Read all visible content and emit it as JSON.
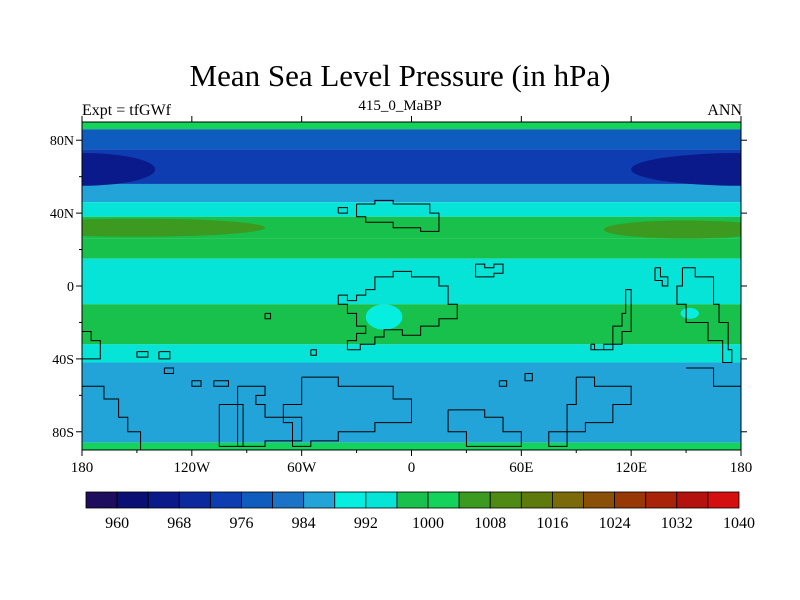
{
  "header": {
    "title": "Mean Sea Level Pressure (in hPa)",
    "left_label": "Expt = tfGWf",
    "center_label": "415_0_MaBP",
    "right_label": "ANN"
  },
  "chart_data": {
    "type": "heatmap",
    "title": "Mean Sea Level Pressure (in hPa)",
    "variable": "Mean Sea Level Pressure",
    "units": "hPa",
    "x_range": [
      -180,
      180
    ],
    "y_range": [
      -90,
      90
    ],
    "x_ticks": [
      {
        "value": -180,
        "label": "180"
      },
      {
        "value": -120,
        "label": "120W"
      },
      {
        "value": -60,
        "label": "60W"
      },
      {
        "value": 0,
        "label": "0"
      },
      {
        "value": 60,
        "label": "60E"
      },
      {
        "value": 120,
        "label": "120E"
      },
      {
        "value": 180,
        "label": "180"
      }
    ],
    "y_ticks": [
      {
        "value": 80,
        "label": "80N"
      },
      {
        "value": 40,
        "label": "40N"
      },
      {
        "value": 0,
        "label": "0"
      },
      {
        "value": -40,
        "label": "40S"
      },
      {
        "value": -80,
        "label": "80S"
      }
    ],
    "colorbar": {
      "colors": [
        "#1e0d5e",
        "#0a0f73",
        "#0b1a8a",
        "#0c2a9e",
        "#0d3db0",
        "#0f5cbf",
        "#1b73c8",
        "#22a4d9",
        "#05eedf",
        "#06e4d7",
        "#18c14c",
        "#13d35b",
        "#3b9a1f",
        "#4f8b14",
        "#5e7a0d",
        "#7a6a0a",
        "#8a5008",
        "#983806",
        "#a82308",
        "#b4120f",
        "#d40f10"
      ],
      "boundaries": [
        956,
        960,
        964,
        968,
        972,
        976,
        980,
        984,
        988,
        992,
        996,
        1000,
        1004,
        1008,
        1012,
        1016,
        1020,
        1024,
        1028,
        1032,
        1036,
        1040
      ],
      "labels": [
        {
          "value": 960,
          "label": "960"
        },
        {
          "value": 968,
          "label": "968"
        },
        {
          "value": 976,
          "label": "976"
        },
        {
          "value": 984,
          "label": "984"
        },
        {
          "value": 992,
          "label": "992"
        },
        {
          "value": 1000,
          "label": "1000"
        },
        {
          "value": 1008,
          "label": "1008"
        },
        {
          "value": 1016,
          "label": "1016"
        },
        {
          "value": 1024,
          "label": "1024"
        },
        {
          "value": 1032,
          "label": "1032"
        },
        {
          "value": 1040,
          "label": "1040"
        }
      ]
    },
    "zonal_bands": [
      {
        "lat_from": 90,
        "lat_to": 86,
        "value": 1002
      },
      {
        "lat_from": 86,
        "lat_to": 75,
        "value": 978
      },
      {
        "lat_from": 75,
        "lat_to": 56,
        "value": 972
      },
      {
        "lat_from": 56,
        "lat_to": 46,
        "value": 984
      },
      {
        "lat_from": 46,
        "lat_to": 38,
        "value": 992
      },
      {
        "lat_from": 38,
        "lat_to": 26,
        "value": 999
      },
      {
        "lat_from": 26,
        "lat_to": 15,
        "value": 998
      },
      {
        "lat_from": 15,
        "lat_to": -10,
        "value": 994
      },
      {
        "lat_from": -10,
        "lat_to": -32,
        "value": 999
      },
      {
        "lat_from": -32,
        "lat_to": -42,
        "value": 993
      },
      {
        "lat_from": -42,
        "lat_to": -86,
        "value": 987
      },
      {
        "lat_from": -86,
        "lat_to": -90,
        "value": 1002
      }
    ],
    "features": [
      {
        "name": "north-pacific-low-west",
        "lon": -180,
        "lat": 64,
        "lon_half": 40,
        "lat_half": 9,
        "value": 966
      },
      {
        "name": "north-pacific-low-east",
        "lon": 180,
        "lat": 64,
        "lon_half": 60,
        "lat_half": 9,
        "value": 966
      },
      {
        "name": "subtropical-high-west",
        "lon": -150,
        "lat": 32,
        "lon_half": 70,
        "lat_half": 5,
        "value": 1004
      },
      {
        "name": "subtropical-high-east",
        "lon": 150,
        "lat": 31,
        "lon_half": 45,
        "lat_half": 5,
        "value": 1004
      },
      {
        "name": "thermal-low-central",
        "lon": -15,
        "lat": -17,
        "lon_half": 10,
        "lat_half": 7,
        "value": 988
      },
      {
        "name": "thermal-low-east",
        "lon": 152,
        "lat": -15,
        "lon_half": 5,
        "lat_half": 3,
        "value": 988
      }
    ],
    "coastlines": [
      [
        [
          -30,
          45
        ],
        [
          -20,
          45
        ],
        [
          -20,
          47
        ],
        [
          -10,
          47
        ],
        [
          -10,
          45
        ],
        [
          10,
          45
        ],
        [
          10,
          40
        ],
        [
          15,
          40
        ],
        [
          15,
          30
        ],
        [
          5,
          30
        ],
        [
          5,
          32
        ],
        [
          -10,
          32
        ],
        [
          -10,
          35
        ],
        [
          -25,
          35
        ],
        [
          -25,
          38
        ],
        [
          -30,
          38
        ],
        [
          -30,
          45
        ]
      ],
      [
        [
          -40,
          -5
        ],
        [
          -35,
          -5
        ],
        [
          -35,
          -8
        ],
        [
          -30,
          -8
        ],
        [
          -30,
          -5
        ],
        [
          -25,
          -5
        ],
        [
          -25,
          -2
        ],
        [
          -20,
          -2
        ],
        [
          -20,
          5
        ],
        [
          -10,
          5
        ],
        [
          -10,
          8
        ],
        [
          0,
          8
        ],
        [
          0,
          5
        ],
        [
          15,
          5
        ],
        [
          15,
          0
        ],
        [
          20,
          0
        ],
        [
          20,
          -10
        ],
        [
          25,
          -10
        ],
        [
          25,
          -18
        ],
        [
          15,
          -18
        ],
        [
          15,
          -22
        ],
        [
          5,
          -22
        ],
        [
          5,
          -27
        ],
        [
          -5,
          -27
        ],
        [
          -5,
          -24
        ],
        [
          -15,
          -24
        ],
        [
          -15,
          -28
        ],
        [
          -20,
          -28
        ],
        [
          -20,
          -32
        ],
        [
          -28,
          -32
        ],
        [
          -28,
          -35
        ],
        [
          -35,
          -35
        ],
        [
          -35,
          -30
        ],
        [
          -30,
          -30
        ],
        [
          -30,
          -26
        ],
        [
          -25,
          -26
        ],
        [
          -25,
          -22
        ],
        [
          -30,
          -22
        ],
        [
          -30,
          -15
        ],
        [
          -35,
          -15
        ],
        [
          -35,
          -10
        ],
        [
          -40,
          -10
        ],
        [
          -40,
          -5
        ]
      ],
      [
        [
          35,
          12
        ],
        [
          40,
          12
        ],
        [
          40,
          10
        ],
        [
          45,
          10
        ],
        [
          45,
          12
        ],
        [
          50,
          12
        ],
        [
          50,
          7
        ],
        [
          45,
          7
        ],
        [
          45,
          5
        ],
        [
          35,
          5
        ],
        [
          35,
          12
        ]
      ],
      [
        [
          98,
          -32
        ],
        [
          100,
          -32
        ],
        [
          100,
          -35
        ],
        [
          110,
          -35
        ],
        [
          110,
          -22
        ],
        [
          115,
          -22
        ],
        [
          115,
          -15
        ],
        [
          117,
          -15
        ],
        [
          117,
          -2
        ],
        [
          120,
          -2
        ],
        [
          120,
          -25
        ],
        [
          115,
          -25
        ],
        [
          115,
          -32
        ],
        [
          105,
          -32
        ],
        [
          105,
          -35
        ],
        [
          98,
          -35
        ],
        [
          98,
          -32
        ]
      ],
      [
        [
          133,
          10
        ],
        [
          136,
          10
        ],
        [
          136,
          5
        ],
        [
          140,
          5
        ],
        [
          140,
          0
        ],
        [
          137,
          0
        ],
        [
          137,
          3
        ],
        [
          133,
          3
        ],
        [
          133,
          10
        ]
      ],
      [
        [
          148,
          10
        ],
        [
          155,
          10
        ],
        [
          155,
          5
        ],
        [
          165,
          5
        ],
        [
          165,
          -10
        ],
        [
          168,
          -10
        ],
        [
          168,
          -20
        ],
        [
          173,
          -20
        ],
        [
          173,
          -35
        ],
        [
          175,
          -35
        ],
        [
          175,
          -42
        ],
        [
          170,
          -42
        ],
        [
          170,
          -30
        ],
        [
          162,
          -30
        ],
        [
          162,
          -20
        ],
        [
          150,
          -20
        ],
        [
          150,
          -10
        ],
        [
          145,
          -10
        ],
        [
          145,
          0
        ],
        [
          148,
          0
        ],
        [
          148,
          10
        ]
      ],
      [
        [
          -180,
          -25
        ],
        [
          -175,
          -25
        ],
        [
          -175,
          -30
        ],
        [
          -170,
          -30
        ],
        [
          -170,
          -40
        ],
        [
          -180,
          -40
        ]
      ],
      [
        [
          -150,
          -36
        ],
        [
          -144,
          -36
        ],
        [
          -144,
          -39
        ],
        [
          -150,
          -39
        ],
        [
          -150,
          -36
        ]
      ],
      [
        [
          -138,
          -36
        ],
        [
          -132,
          -36
        ],
        [
          -132,
          -40
        ],
        [
          -138,
          -40
        ],
        [
          -138,
          -36
        ]
      ],
      [
        [
          -135,
          -45
        ],
        [
          -130,
          -45
        ],
        [
          -130,
          -48
        ],
        [
          -135,
          -48
        ],
        [
          -135,
          -45
        ]
      ],
      [
        [
          -120,
          -52
        ],
        [
          -115,
          -52
        ],
        [
          -115,
          -55
        ],
        [
          -120,
          -55
        ],
        [
          -120,
          -52
        ]
      ],
      [
        [
          -108,
          -52
        ],
        [
          -100,
          -52
        ],
        [
          -100,
          -55
        ],
        [
          -108,
          -55
        ],
        [
          -108,
          -52
        ]
      ],
      [
        [
          -180,
          -55
        ],
        [
          -168,
          -55
        ],
        [
          -168,
          -62
        ],
        [
          -160,
          -62
        ],
        [
          -160,
          -72
        ],
        [
          -155,
          -72
        ],
        [
          -155,
          -80
        ],
        [
          -148,
          -80
        ],
        [
          -148,
          -90
        ]
      ],
      [
        [
          -105,
          -65
        ],
        [
          -92,
          -65
        ],
        [
          -92,
          -88
        ],
        [
          -105,
          -88
        ],
        [
          -105,
          -65
        ]
      ],
      [
        [
          -95,
          -55
        ],
        [
          -80,
          -55
        ],
        [
          -80,
          -60
        ],
        [
          -85,
          -60
        ],
        [
          -85,
          -65
        ],
        [
          -80,
          -65
        ],
        [
          -80,
          -72
        ],
        [
          -60,
          -72
        ],
        [
          -60,
          -85
        ],
        [
          -80,
          -85
        ],
        [
          -80,
          -88
        ],
        [
          -95,
          -88
        ],
        [
          -95,
          -55
        ]
      ],
      [
        [
          -60,
          -50
        ],
        [
          -40,
          -50
        ],
        [
          -40,
          -55
        ],
        [
          -10,
          -55
        ],
        [
          -10,
          -62
        ],
        [
          0,
          -62
        ],
        [
          0,
          -75
        ],
        [
          -20,
          -75
        ],
        [
          -20,
          -80
        ],
        [
          -40,
          -80
        ],
        [
          -40,
          -85
        ],
        [
          -55,
          -85
        ],
        [
          -55,
          -88
        ],
        [
          -65,
          -88
        ],
        [
          -65,
          -75
        ],
        [
          -70,
          -75
        ],
        [
          -70,
          -65
        ],
        [
          -60,
          -65
        ],
        [
          -60,
          -50
        ]
      ],
      [
        [
          20,
          -68
        ],
        [
          40,
          -68
        ],
        [
          40,
          -72
        ],
        [
          50,
          -72
        ],
        [
          50,
          -80
        ],
        [
          60,
          -80
        ],
        [
          60,
          -88
        ],
        [
          30,
          -88
        ],
        [
          30,
          -80
        ],
        [
          20,
          -80
        ],
        [
          20,
          -68
        ]
      ],
      [
        [
          48,
          -52
        ],
        [
          52,
          -52
        ],
        [
          52,
          -55
        ],
        [
          48,
          -55
        ],
        [
          48,
          -52
        ]
      ],
      [
        [
          62,
          -48
        ],
        [
          66,
          -48
        ],
        [
          66,
          -52
        ],
        [
          62,
          -52
        ],
        [
          62,
          -48
        ]
      ],
      [
        [
          90,
          -50
        ],
        [
          100,
          -50
        ],
        [
          100,
          -55
        ],
        [
          120,
          -55
        ],
        [
          120,
          -65
        ],
        [
          110,
          -65
        ],
        [
          110,
          -75
        ],
        [
          95,
          -75
        ],
        [
          95,
          -80
        ],
        [
          75,
          -80
        ],
        [
          75,
          -88
        ],
        [
          85,
          -88
        ],
        [
          85,
          -65
        ],
        [
          90,
          -65
        ],
        [
          90,
          -50
        ]
      ],
      [
        [
          150,
          -45
        ],
        [
          165,
          -45
        ],
        [
          165,
          -55
        ],
        [
          180,
          -55
        ]
      ],
      [
        [
          -80,
          -15
        ],
        [
          -77,
          -15
        ],
        [
          -77,
          -18
        ],
        [
          -80,
          -18
        ],
        [
          -80,
          -15
        ]
      ],
      [
        [
          -55,
          -35
        ],
        [
          -52,
          -35
        ],
        [
          -52,
          -38
        ],
        [
          -55,
          -38
        ],
        [
          -55,
          -35
        ]
      ],
      [
        [
          -40,
          40
        ],
        [
          -35,
          40
        ],
        [
          -35,
          43
        ],
        [
          -40,
          43
        ],
        [
          -40,
          40
        ]
      ]
    ]
  }
}
